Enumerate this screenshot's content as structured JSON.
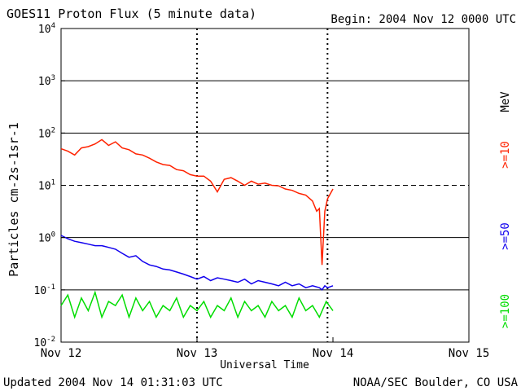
{
  "header": {
    "title": "GOES11 Proton Flux (5 minute data)",
    "begin": "Begin: 2004 Nov 12 0000 UTC"
  },
  "footer": {
    "updated": "Updated 2004 Nov 14 01:31:03 UTC",
    "credit": "NOAA/SEC Boulder, CO USA"
  },
  "legend": {
    "unit": "MeV",
    "items": [
      {
        "label": ">=10",
        "color": "#ff2200"
      },
      {
        "label": ">=50",
        "color": "#1100ee"
      },
      {
        "label": ">=100",
        "color": "#00dd00"
      }
    ]
  },
  "chart_data": {
    "type": "line",
    "title": "GOES11 Proton Flux (5 minute data)",
    "xlabel": "Universal Time",
    "ylabel": "Particles cm-2s-1sr-1",
    "y_scale": "log",
    "ylim": [
      0.01,
      10000
    ],
    "y_ticks": [
      {
        "value": 0.01,
        "base": "10",
        "exp": "-2"
      },
      {
        "value": 0.1,
        "base": "10",
        "exp": "-1"
      },
      {
        "value": 1,
        "base": "10",
        "exp": "0"
      },
      {
        "value": 10,
        "base": "10",
        "exp": "1"
      },
      {
        "value": 100,
        "base": "10",
        "exp": "2"
      },
      {
        "value": 1000,
        "base": "10",
        "exp": "3"
      },
      {
        "value": 10000,
        "base": "10",
        "exp": "4"
      }
    ],
    "x_unit": "days from 2004 Nov 12 0000 UTC",
    "xlim": [
      0,
      3
    ],
    "x_ticks": [
      {
        "value": 0,
        "label": "Nov 12"
      },
      {
        "value": 1,
        "label": "Nov 13"
      },
      {
        "value": 2,
        "label": "Nov 14"
      },
      {
        "value": 3,
        "label": "Nov 15"
      }
    ],
    "x_markers": [
      1.0,
      1.96
    ],
    "threshold": 10,
    "series": [
      {
        "name": ">=10 MeV",
        "color": "#ff2200",
        "x": [
          0,
          0.05,
          0.1,
          0.15,
          0.2,
          0.25,
          0.3,
          0.35,
          0.4,
          0.45,
          0.5,
          0.55,
          0.6,
          0.65,
          0.7,
          0.75,
          0.8,
          0.85,
          0.9,
          0.95,
          1.0,
          1.05,
          1.1,
          1.15,
          1.2,
          1.25,
          1.3,
          1.35,
          1.4,
          1.45,
          1.5,
          1.55,
          1.6,
          1.65,
          1.7,
          1.75,
          1.8,
          1.85,
          1.88,
          1.9,
          1.92,
          1.94,
          1.96,
          2.0
        ],
        "values": [
          50,
          45,
          38,
          52,
          55,
          62,
          75,
          58,
          68,
          52,
          48,
          40,
          38,
          33,
          28,
          25,
          24,
          20,
          19,
          16,
          15,
          15,
          12,
          7.5,
          13,
          14,
          12,
          10,
          12,
          10.5,
          11,
          10,
          9.8,
          8.5,
          8,
          7,
          6.5,
          5,
          3.2,
          3.6,
          0.3,
          3.2,
          5.5,
          8.5
        ]
      },
      {
        "name": ">=50 MeV",
        "color": "#1100ee",
        "x": [
          0,
          0.05,
          0.1,
          0.15,
          0.2,
          0.25,
          0.3,
          0.35,
          0.4,
          0.45,
          0.5,
          0.55,
          0.6,
          0.65,
          0.7,
          0.75,
          0.8,
          0.85,
          0.9,
          0.95,
          1.0,
          1.05,
          1.1,
          1.15,
          1.2,
          1.25,
          1.3,
          1.35,
          1.4,
          1.45,
          1.5,
          1.55,
          1.6,
          1.65,
          1.7,
          1.75,
          1.8,
          1.85,
          1.9,
          1.92,
          1.94,
          1.96,
          2.0
        ],
        "values": [
          1.1,
          0.95,
          0.85,
          0.8,
          0.75,
          0.7,
          0.7,
          0.65,
          0.6,
          0.5,
          0.42,
          0.45,
          0.35,
          0.3,
          0.28,
          0.25,
          0.24,
          0.22,
          0.2,
          0.18,
          0.16,
          0.18,
          0.15,
          0.17,
          0.16,
          0.15,
          0.14,
          0.16,
          0.13,
          0.15,
          0.14,
          0.13,
          0.12,
          0.14,
          0.12,
          0.13,
          0.11,
          0.12,
          0.11,
          0.1,
          0.12,
          0.11,
          0.12
        ]
      },
      {
        "name": ">=100 MeV",
        "color": "#00dd00",
        "x": [
          0,
          0.05,
          0.1,
          0.15,
          0.2,
          0.25,
          0.3,
          0.35,
          0.4,
          0.45,
          0.5,
          0.55,
          0.6,
          0.65,
          0.7,
          0.75,
          0.8,
          0.85,
          0.9,
          0.95,
          1.0,
          1.05,
          1.1,
          1.15,
          1.2,
          1.25,
          1.3,
          1.35,
          1.4,
          1.45,
          1.5,
          1.55,
          1.6,
          1.65,
          1.7,
          1.75,
          1.8,
          1.85,
          1.9,
          1.95,
          2.0
        ],
        "values": [
          0.05,
          0.08,
          0.03,
          0.07,
          0.04,
          0.09,
          0.03,
          0.06,
          0.05,
          0.08,
          0.03,
          0.07,
          0.04,
          0.06,
          0.03,
          0.05,
          0.04,
          0.07,
          0.03,
          0.05,
          0.04,
          0.06,
          0.03,
          0.05,
          0.04,
          0.07,
          0.03,
          0.06,
          0.04,
          0.05,
          0.03,
          0.06,
          0.04,
          0.05,
          0.03,
          0.07,
          0.04,
          0.05,
          0.03,
          0.06,
          0.04
        ]
      }
    ]
  }
}
